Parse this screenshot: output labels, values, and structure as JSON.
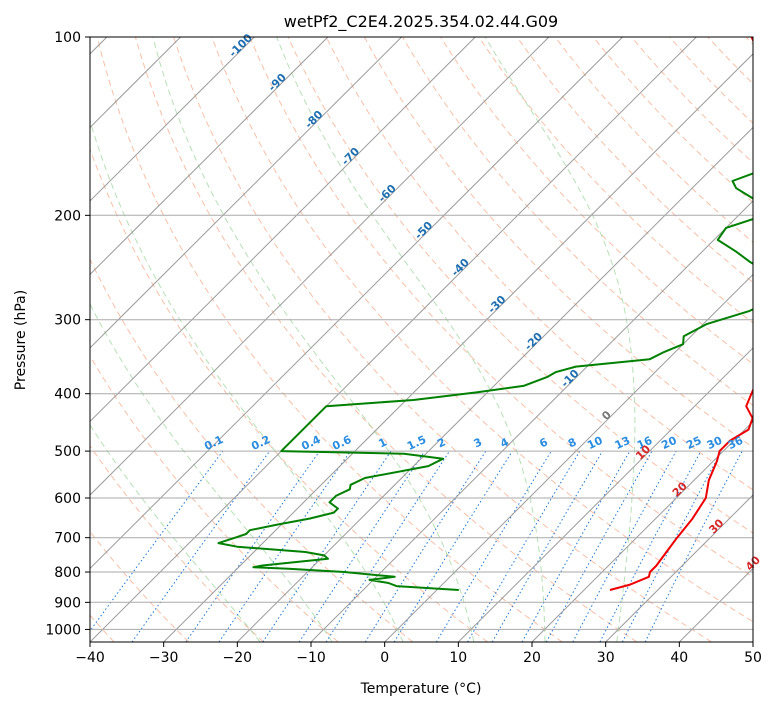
{
  "chart_data": {
    "type": "line",
    "subtype": "skew-t log-p diagram",
    "title": "wetPf2_C2E4.2025.354.02.44.G09",
    "xlabel": "Temperature (°C)",
    "ylabel": "Pressure (hPa)",
    "xlim": [
      -40,
      50
    ],
    "ylim": [
      1050,
      100
    ],
    "x_ticks": [
      -40,
      -30,
      -20,
      -10,
      0,
      10,
      20,
      30,
      40,
      50
    ],
    "x_tick_labels": [
      "−40",
      "−30",
      "−20",
      "−10",
      "0",
      "10",
      "20",
      "30",
      "40",
      "50"
    ],
    "y_ticks": [
      100,
      200,
      300,
      400,
      500,
      600,
      700,
      800,
      900,
      1000
    ],
    "y_tick_labels": [
      "100",
      "200",
      "300",
      "400",
      "500",
      "600",
      "700",
      "800",
      "900",
      "1000"
    ],
    "grid": true,
    "skew_degC_per_log_unit": 35,
    "dry_adiabat_labels": [
      "-100",
      "-90",
      "-80",
      "-70",
      "-60",
      "-50",
      "-40",
      "-30",
      "-20",
      "-10",
      "0",
      "10",
      "20",
      "30",
      "40"
    ],
    "dry_adiabat_label_colors": [
      "#1f6fb0",
      "#1f6fb0",
      "#1f6fb0",
      "#1f6fb0",
      "#1f6fb0",
      "#1f6fb0",
      "#1f6fb0",
      "#1f6fb0",
      "#1f6fb0",
      "#1f6fb0",
      "#777777",
      "#d62728",
      "#d62728",
      "#d62728",
      "#d62728"
    ],
    "mixing_ratio_labels": [
      "0.1",
      "0.2",
      "0.4",
      "0.6",
      "1",
      "1.5",
      "2",
      "3",
      "4",
      "6",
      "8",
      "10",
      "13",
      "16",
      "20",
      "25",
      "30",
      "36"
    ],
    "series": [
      {
        "name": "Temperature",
        "color": "#ee0000",
        "points": [
          [
            858,
            23.5
          ],
          [
            840,
            25.5
          ],
          [
            815,
            27
          ],
          [
            800,
            26.5
          ],
          [
            780,
            26.5
          ],
          [
            740,
            26
          ],
          [
            700,
            25.5
          ],
          [
            650,
            25.0
          ],
          [
            600,
            24.0
          ],
          [
            560,
            22.0
          ],
          [
            520,
            20.5
          ],
          [
            500,
            19.5
          ],
          [
            480,
            19.5
          ],
          [
            460,
            20.5
          ],
          [
            440,
            19.5
          ],
          [
            420,
            17.0
          ],
          [
            400,
            16.0
          ],
          [
            380,
            15.0
          ],
          [
            360,
            13.5
          ],
          [
            340,
            12.0
          ],
          [
            320,
            10.5
          ],
          [
            300,
            8.5
          ],
          [
            280,
            6.5
          ],
          [
            260,
            4.5
          ],
          [
            240,
            2.5
          ],
          [
            220,
            0
          ],
          [
            200,
            -3.5
          ],
          [
            180,
            -8.0
          ],
          [
            160,
            -13.0
          ],
          [
            150,
            -16.5
          ],
          [
            140,
            -20.0
          ],
          [
            130,
            -23.0
          ],
          [
            120,
            -24.0
          ],
          [
            115,
            -25.5
          ],
          [
            110,
            -27.5
          ],
          [
            105,
            -30.0
          ],
          [
            100,
            -32.5
          ]
        ]
      },
      {
        "name": "Dewpoint",
        "color": "#008000",
        "points": [
          [
            858,
            3.0
          ],
          [
            845,
            -6.0
          ],
          [
            835,
            -7.5
          ],
          [
            825,
            -10.5
          ],
          [
            815,
            -7.5
          ],
          [
            800,
            -15.0
          ],
          [
            790,
            -23.0
          ],
          [
            785,
            -28.0
          ],
          [
            780,
            -27.0
          ],
          [
            760,
            -19.0
          ],
          [
            750,
            -20.0
          ],
          [
            740,
            -23.0
          ],
          [
            725,
            -33.0
          ],
          [
            715,
            -36.0
          ],
          [
            700,
            -34.5
          ],
          [
            690,
            -33.5
          ],
          [
            680,
            -33.5
          ],
          [
            665,
            -30.5
          ],
          [
            650,
            -27.0
          ],
          [
            635,
            -24.5
          ],
          [
            625,
            -24.5
          ],
          [
            610,
            -26.5
          ],
          [
            595,
            -26.5
          ],
          [
            580,
            -25.5
          ],
          [
            570,
            -26.0
          ],
          [
            555,
            -25.0
          ],
          [
            530,
            -18.0
          ],
          [
            515,
            -17.0
          ],
          [
            505,
            -23.0
          ],
          [
            500,
            -40.0
          ],
          [
            420,
            -40.0
          ],
          [
            410,
            -29.0
          ],
          [
            398,
            -21.5
          ],
          [
            388,
            -16.0
          ],
          [
            375,
            -14.0
          ],
          [
            368,
            -13.5
          ],
          [
            360,
            -11.5
          ],
          [
            350,
            -2.5
          ],
          [
            340,
            -1.5
          ],
          [
            330,
            0
          ],
          [
            320,
            -1.0
          ],
          [
            305,
            0.5
          ],
          [
            290,
            4.5
          ],
          [
            275,
            6.5
          ],
          [
            265,
            5.5
          ],
          [
            250,
            2.0
          ],
          [
            240,
            -2.0
          ],
          [
            230,
            -5.5
          ],
          [
            220,
            -9.5
          ],
          [
            210,
            -10.0
          ],
          [
            200,
            -6.5
          ],
          [
            190,
            -9.0
          ],
          [
            180,
            -14.0
          ],
          [
            175,
            -15.5
          ],
          [
            165,
            -12.0
          ],
          [
            150,
            -14.0
          ],
          [
            140,
            -14.5
          ],
          [
            130,
            -14.0
          ],
          [
            120,
            -12.5
          ],
          [
            115,
            -14.0
          ],
          [
            110,
            -18.0
          ],
          [
            105,
            -19.5
          ],
          [
            100,
            -19.5
          ]
        ]
      }
    ]
  }
}
